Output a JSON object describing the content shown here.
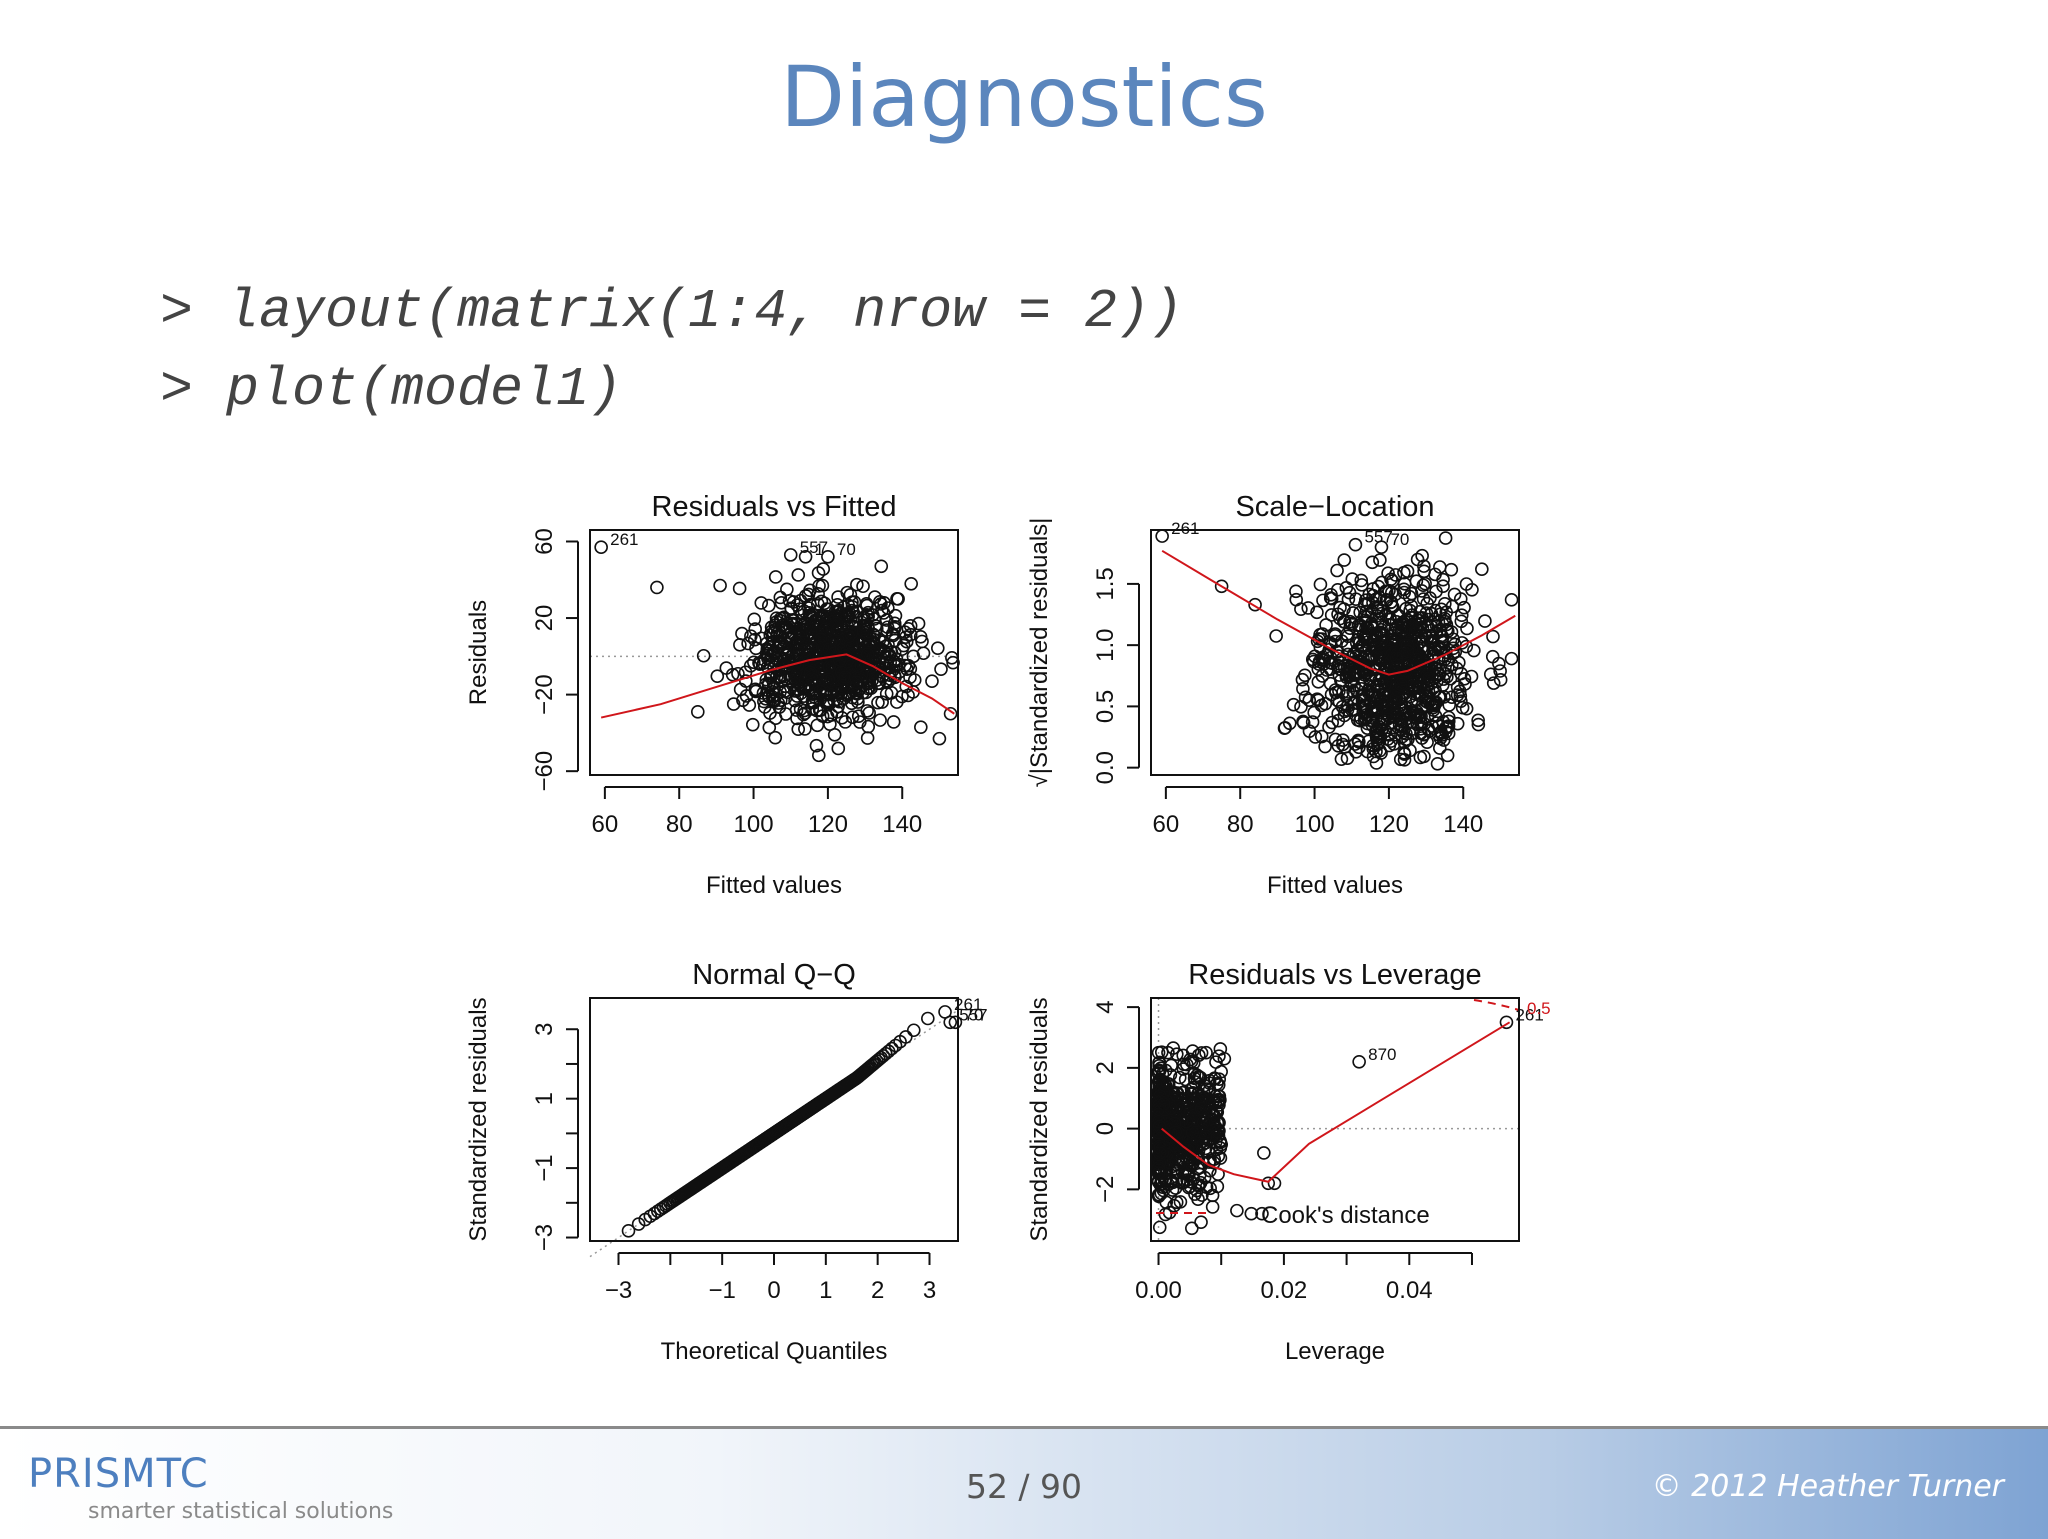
{
  "slide": {
    "title": "Diagnostics",
    "code": [
      "> layout(matrix(1:4, nrow = 2))",
      "> plot(model1)"
    ]
  },
  "footer": {
    "brand": "PRISMTC",
    "tagline": "smarter statistical solutions",
    "page": "52 / 90",
    "copyright": "© 2012 Heather Turner"
  },
  "chart_data": [
    {
      "type": "scatter",
      "title": "Residuals vs Fitted",
      "xlabel": "Fitted values",
      "ylabel": "Residuals",
      "xlim": [
        56,
        155
      ],
      "ylim": [
        -62,
        66
      ],
      "xticks": [
        60,
        80,
        100,
        120,
        140
      ],
      "yticks": [
        -60,
        -20,
        20,
        60
      ],
      "reference_line": {
        "y": 0,
        "style": "dotted"
      },
      "smoother_color": "#d0161b",
      "smoother": {
        "x": [
          59,
          75,
          90,
          105,
          115,
          125,
          132,
          140,
          148,
          154
        ],
        "y": [
          -32,
          -25,
          -16,
          -7,
          -2,
          1,
          -5,
          -14,
          -22,
          -30
        ]
      },
      "cloud": {
        "n": 900,
        "x_mean": 121,
        "x_sd": 10,
        "y_mean": 0,
        "y_sd": 16
      },
      "points": [
        {
          "x": 59,
          "y": 57,
          "label": "261"
        },
        {
          "x": 74,
          "y": 36
        },
        {
          "x": 85,
          "y": -29
        },
        {
          "x": 91,
          "y": 37
        },
        {
          "x": 110,
          "y": 53,
          "label": "557"
        },
        {
          "x": 114,
          "y": 52,
          "label": "1"
        },
        {
          "x": 120,
          "y": 52,
          "label": "70"
        },
        {
          "x": 143,
          "y": 0
        },
        {
          "x": 145,
          "y": -37
        },
        {
          "x": 148,
          "y": -13
        },
        {
          "x": 150,
          "y": -43
        },
        {
          "x": 153,
          "y": -30
        }
      ]
    },
    {
      "type": "scatter",
      "title": "Scale−Location",
      "xlabel": "Fitted values",
      "ylabel": "√|Standardized residuals|",
      "xlim": [
        56,
        155
      ],
      "ylim": [
        -0.06,
        1.94
      ],
      "xticks": [
        60,
        80,
        100,
        120,
        140
      ],
      "yticks": [
        0.0,
        0.5,
        1.0,
        1.5
      ],
      "yticklabels": [
        "0.0",
        "0.5",
        "1.0",
        "1.5"
      ],
      "smoother_color": "#d0161b",
      "smoother": {
        "x": [
          59,
          75,
          90,
          105,
          115,
          120,
          125,
          135,
          145,
          154
        ],
        "y": [
          1.77,
          1.48,
          1.21,
          0.96,
          0.81,
          0.76,
          0.79,
          0.92,
          1.08,
          1.24
        ]
      },
      "cloud": {
        "n": 900,
        "x_mean": 121,
        "x_sd": 10,
        "sqrt_abs_of_normal": true
      },
      "points": [
        {
          "x": 59,
          "y": 1.89,
          "label": "261"
        },
        {
          "x": 75,
          "y": 1.48
        },
        {
          "x": 84,
          "y": 1.33
        },
        {
          "x": 111,
          "y": 1.82,
          "label": "557"
        },
        {
          "x": 118,
          "y": 1.8,
          "label": "70"
        },
        {
          "x": 145,
          "y": 1.62
        },
        {
          "x": 148,
          "y": 1.07
        },
        {
          "x": 153,
          "y": 0.89
        },
        {
          "x": 153,
          "y": 1.37
        }
      ]
    },
    {
      "type": "scatter",
      "title": "Normal Q−Q",
      "xlabel": "Theoretical Quantiles",
      "ylabel": "Standardized residuals",
      "xlim": [
        -3.55,
        3.55
      ],
      "ylim": [
        -3.1,
        3.9
      ],
      "xticks": [
        -3,
        -2,
        -1,
        0,
        1,
        2,
        3
      ],
      "xticklabels": [
        "−3",
        "",
        "−1",
        "0",
        "1",
        "2",
        "3"
      ],
      "yticks": [
        -3,
        -2,
        -1,
        0,
        1,
        2,
        3
      ],
      "yticklabels": [
        "−3",
        "",
        "−1",
        "",
        "1",
        "",
        "3"
      ],
      "reference_line": {
        "slope": 1,
        "intercept": 0,
        "style": "dotted"
      },
      "qq": {
        "n": 1000,
        "upper_tail_boost": 0.25
      },
      "points": [
        {
          "x": 3.3,
          "y": 3.5,
          "label": "261"
        },
        {
          "x": 3.4,
          "y": 3.2,
          "label": "557"
        },
        {
          "x": 3.5,
          "y": 3.2,
          "label": "70"
        }
      ]
    },
    {
      "type": "scatter",
      "title": "Residuals vs Leverage",
      "xlabel": "Leverage",
      "ylabel": "Standardized residuals",
      "xlim": [
        -0.0012,
        0.0575
      ],
      "ylim": [
        -3.7,
        4.3
      ],
      "xticks": [
        0.0,
        0.01,
        0.02,
        0.03,
        0.04,
        0.05
      ],
      "xticklabels": [
        "0.00",
        "",
        "0.02",
        "",
        "0.04",
        ""
      ],
      "yticks": [
        -2,
        0,
        2,
        4
      ],
      "yticklabels": [
        "−2",
        "0",
        "2",
        "4"
      ],
      "reference_line": {
        "y": 0,
        "style": "dotted"
      },
      "smoother_color": "#d0161b",
      "smoother": {
        "x": [
          0.0005,
          0.004,
          0.008,
          0.012,
          0.0175,
          0.024,
          0.032,
          0.04,
          0.048,
          0.056
        ],
        "y": [
          0.0,
          -0.6,
          -1.2,
          -1.5,
          -1.75,
          -0.5,
          0.5,
          1.5,
          2.5,
          3.5
        ]
      },
      "cooks_distance": {
        "label": "Cook's distance",
        "levels": [
          "0.5"
        ],
        "color": "#d0161b"
      },
      "cloud": {
        "n": 700,
        "x_max": 0.01,
        "y_sd": 1
      },
      "points": [
        {
          "x": 0.0555,
          "y": 3.5,
          "label": "261"
        },
        {
          "x": 0.032,
          "y": 2.2,
          "label": "870"
        },
        {
          "x": 0.0175,
          "y": -1.8
        },
        {
          "x": 0.0185,
          "y": -1.8
        },
        {
          "x": 0.0168,
          "y": -0.8
        },
        {
          "x": 0.0105,
          "y": 2.3
        },
        {
          "x": 0.0095,
          "y": -1.5
        },
        {
          "x": 0.0125,
          "y": -2.7
        },
        {
          "x": 0.0148,
          "y": -2.8
        },
        {
          "x": 0.0165,
          "y": -2.8
        }
      ]
    }
  ]
}
